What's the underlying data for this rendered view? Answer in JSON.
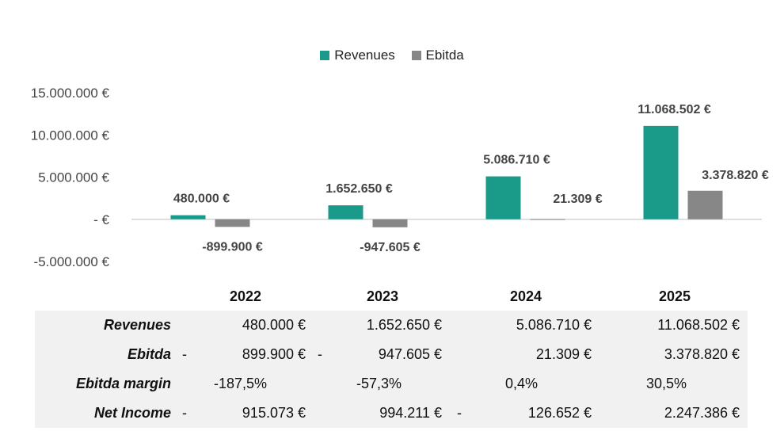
{
  "legend": [
    {
      "name": "Revenues",
      "color": "#1a9a88"
    },
    {
      "name": "Ebitda",
      "color": "#878787"
    }
  ],
  "chart_data": {
    "type": "bar",
    "categories": [
      "2022",
      "2023",
      "2024",
      "2025"
    ],
    "series": [
      {
        "name": "Revenues",
        "values": [
          480000,
          1652650,
          5086710,
          11068502
        ],
        "labels": [
          "480.000 €",
          "1.652.650 €",
          "5.086.710 €",
          "11.068.502 €"
        ],
        "color": "#1a9a88"
      },
      {
        "name": "Ebitda",
        "values": [
          -899900,
          -947605,
          21309,
          3378820
        ],
        "labels": [
          "-899.900 €",
          "-947.605 €",
          "21.309 €",
          "3.378.820 €"
        ],
        "color": "#878787"
      }
    ],
    "ylim": [
      -5000000,
      15000000
    ],
    "yticks": [
      {
        "value": 15000000,
        "label": "15.000.000 €"
      },
      {
        "value": 10000000,
        "label": "10.000.000 €"
      },
      {
        "value": 5000000,
        "label": "5.000.000 €"
      },
      {
        "value": 0,
        "label": "-  €"
      },
      {
        "value": -5000000,
        "label": "-5.000.000 €"
      }
    ],
    "grid": false,
    "legend_position": "top"
  },
  "table": {
    "years": [
      "2022",
      "2023",
      "2024",
      "2025"
    ],
    "rows": [
      {
        "label": "Revenues",
        "cells": [
          {
            "neg": "",
            "value": "480.000 €"
          },
          {
            "neg": "",
            "value": "1.652.650 €"
          },
          {
            "neg": "",
            "value": "5.086.710 €"
          },
          {
            "neg": "",
            "value": "11.068.502 €"
          }
        ]
      },
      {
        "label": "Ebitda",
        "cells": [
          {
            "neg": "-",
            "value": "899.900 €"
          },
          {
            "neg": "-",
            "value": "947.605 €"
          },
          {
            "neg": "",
            "value": "21.309 €"
          },
          {
            "neg": "",
            "value": "3.378.820 €"
          }
        ]
      },
      {
        "label": "Ebitda margin",
        "cells": [
          {
            "neg": "",
            "value": "-187,5%"
          },
          {
            "neg": "",
            "value": "-57,3%"
          },
          {
            "neg": "",
            "value": "0,4%"
          },
          {
            "neg": "",
            "value": "30,5%"
          }
        ]
      },
      {
        "label": "Net Income",
        "cells": [
          {
            "neg": "-",
            "value": "915.073 €"
          },
          {
            "neg": "",
            "value": "994.211 €"
          },
          {
            "neg": "-",
            "value": "126.652 €"
          },
          {
            "neg": "",
            "value": "2.247.386 €"
          }
        ]
      }
    ]
  }
}
